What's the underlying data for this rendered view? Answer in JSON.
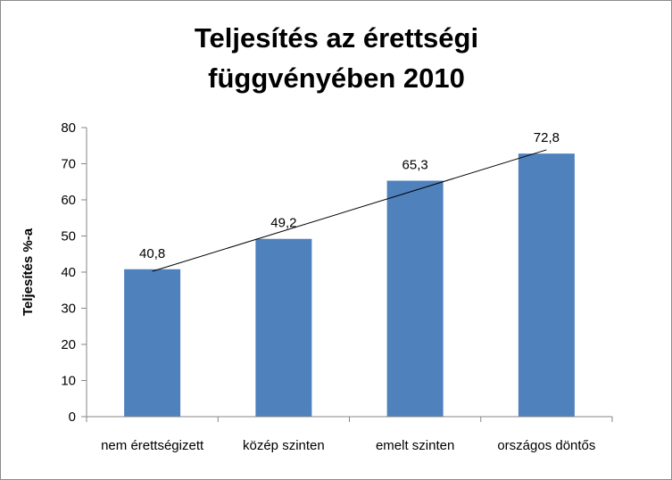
{
  "chart_data": {
    "type": "bar",
    "title_lines": [
      "Teljesítés az érettségi",
      "függvényében 2010"
    ],
    "ylabel": "Teljesítés %-a",
    "categories": [
      "nem érettségizett",
      "közép szinten",
      "emelt szinten",
      "országos döntős"
    ],
    "values": [
      40.8,
      49.2,
      65.3,
      72.8
    ],
    "data_labels": [
      "40,8",
      "49,2",
      "65,3",
      "72,8"
    ],
    "ylim": [
      0,
      80
    ],
    "yticks": [
      0,
      10,
      20,
      30,
      40,
      50,
      60,
      70,
      80
    ],
    "trendline": true,
    "grid": false,
    "legend": "none",
    "colors": {
      "bar": "#4f81bd",
      "axis": "#868686",
      "trend": "#000000"
    }
  }
}
